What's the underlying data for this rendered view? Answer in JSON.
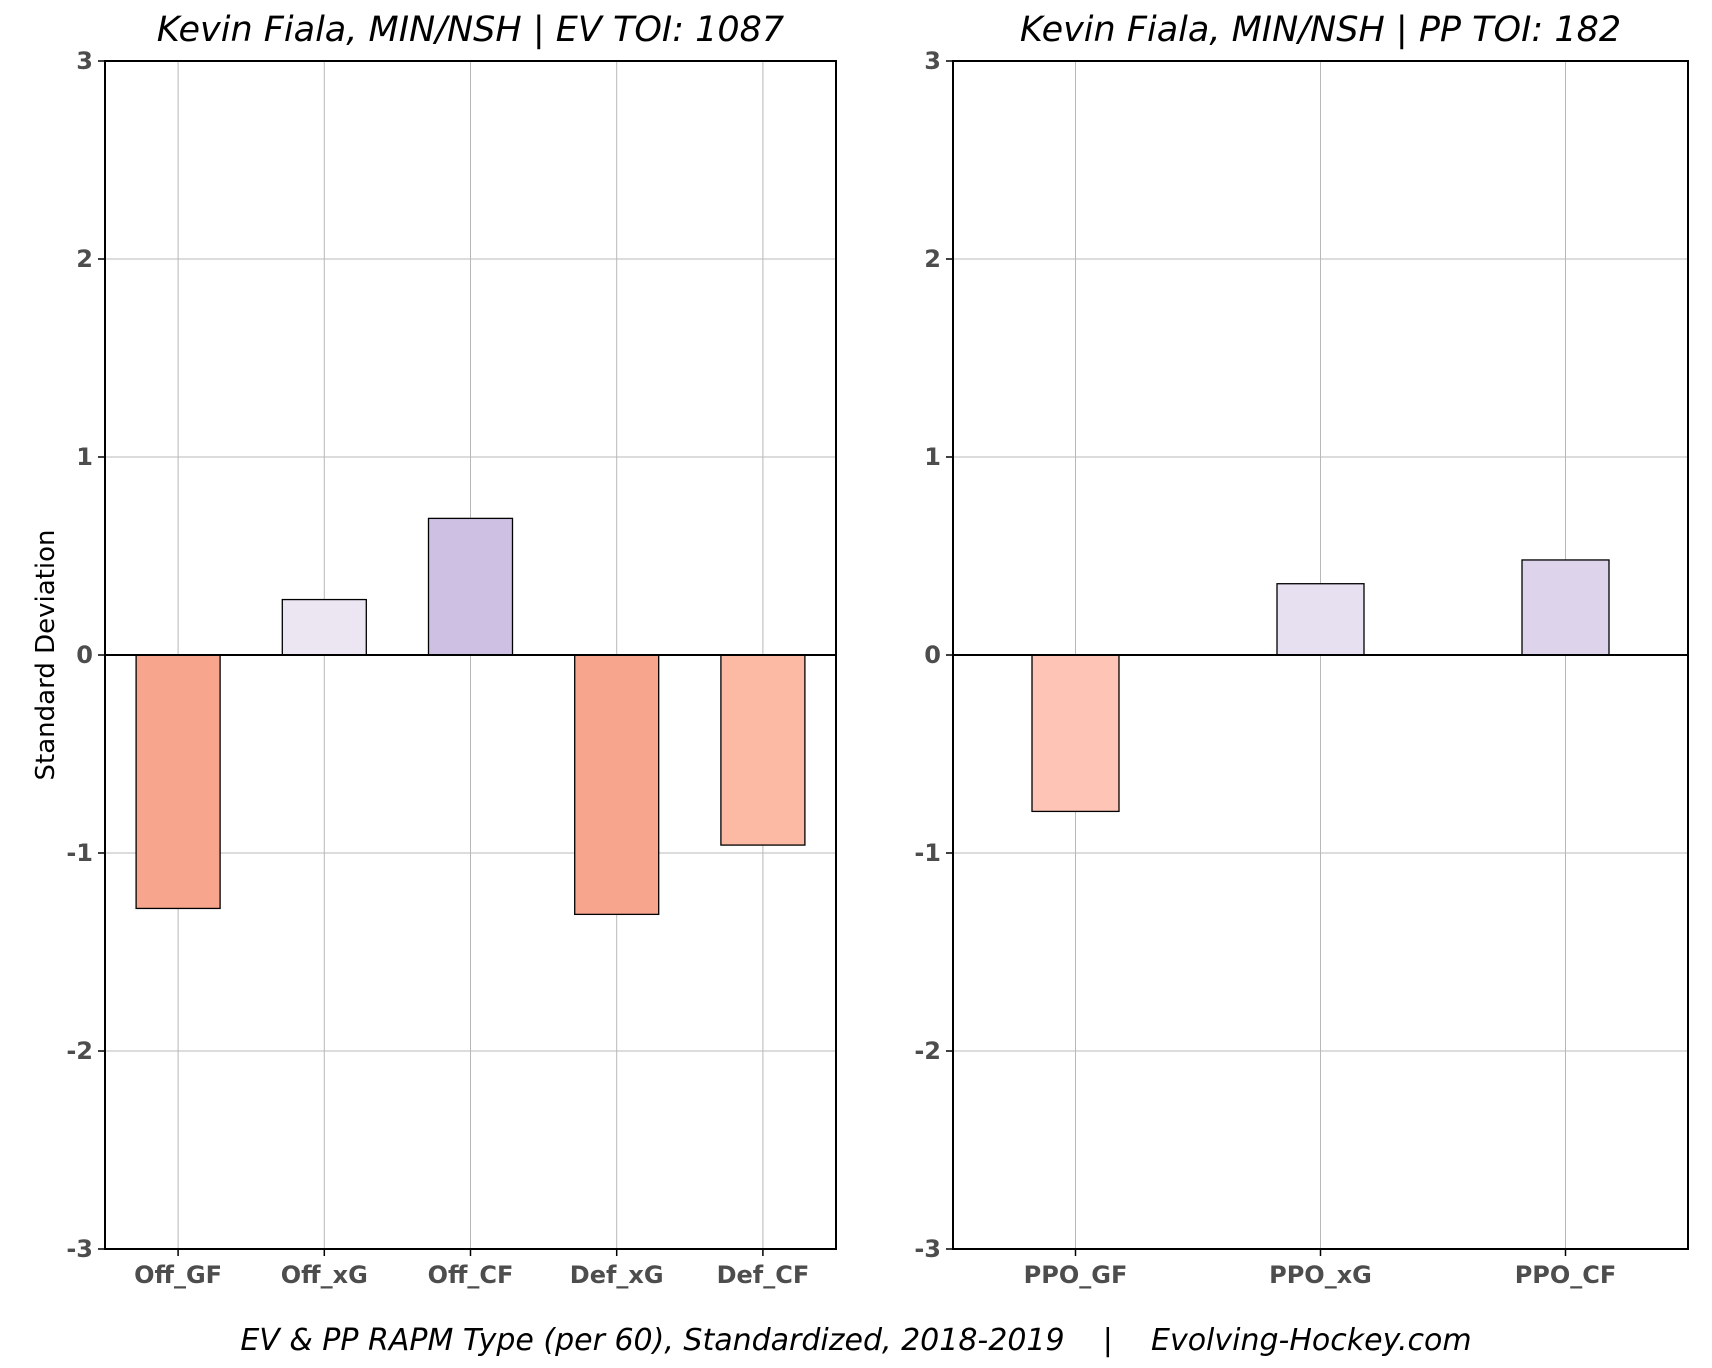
{
  "caption": "EV & PP RAPM Type (per 60), Standardized, 2018-2019    |    Evolving-Hockey.com",
  "ylabel": "Standard Deviation",
  "chart_data": [
    {
      "type": "bar",
      "title": "Kevin Fiala, MIN/NSH  |  EV TOI: 1087",
      "ylabel": "Standard Deviation",
      "ylim": [
        -3,
        3
      ],
      "yticks": [
        -3,
        -2,
        -1,
        0,
        1,
        2,
        3
      ],
      "grid": true,
      "categories": [
        "Off_GF",
        "Off_xG",
        "Off_CF",
        "Def_xG",
        "Def_CF"
      ],
      "values": [
        -1.28,
        0.28,
        0.69,
        -1.31,
        -0.96
      ],
      "colors": [
        "#f7a58c",
        "#ebe6f2",
        "#cdc0e2",
        "#f7a58c",
        "#fcb9a4"
      ]
    },
    {
      "type": "bar",
      "title": "Kevin Fiala, MIN/NSH  |  PP TOI: 182",
      "ylim": [
        -3,
        3
      ],
      "yticks": [
        -3,
        -2,
        -1,
        0,
        1,
        2,
        3
      ],
      "grid": true,
      "categories": [
        "PPO_GF",
        "PPO_xG",
        "PPO_CF"
      ],
      "values": [
        -0.79,
        0.36,
        0.48
      ],
      "colors": [
        "#fec4b6",
        "#e6e0f1",
        "#ddd4ec"
      ]
    }
  ]
}
